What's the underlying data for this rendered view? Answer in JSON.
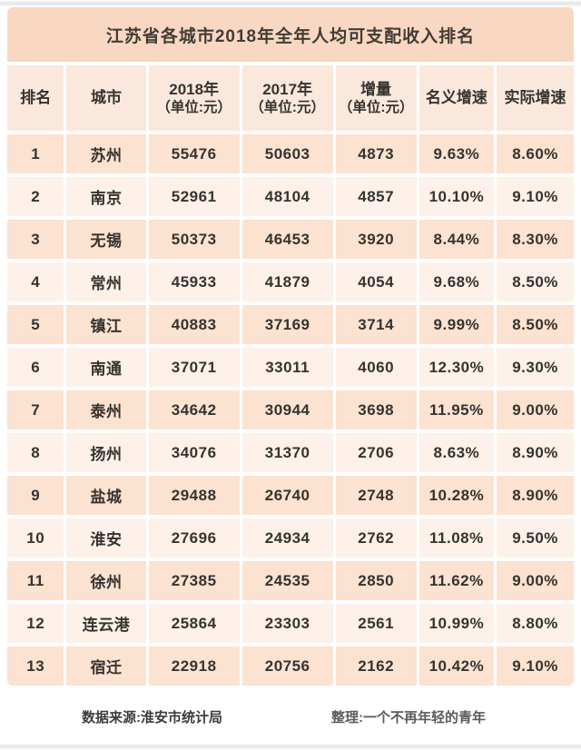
{
  "title": "江苏省各城市2018年全年人均可支配收入排名",
  "table": {
    "headers": [
      {
        "label": "排名"
      },
      {
        "label": "城市"
      },
      {
        "label": "2018年",
        "sub": "（单位:元）"
      },
      {
        "label": "2017年",
        "sub": "（单位:元）"
      },
      {
        "label": "增量",
        "sub": "（单位:元）"
      },
      {
        "label": "名义增速"
      },
      {
        "label": "实际增速"
      }
    ],
    "rows": [
      {
        "cells": [
          "1",
          "苏州",
          "55476",
          "50603",
          "4873",
          "9.63%",
          "8.60%"
        ]
      },
      {
        "cells": [
          "2",
          "南京",
          "52961",
          "48104",
          "4857",
          "10.10%",
          "9.10%"
        ]
      },
      {
        "cells": [
          "3",
          "无锡",
          "50373",
          "46453",
          "3920",
          "8.44%",
          "8.30%"
        ]
      },
      {
        "cells": [
          "4",
          "常州",
          "45933",
          "41879",
          "4054",
          "9.68%",
          "8.50%"
        ]
      },
      {
        "cells": [
          "5",
          "镇江",
          "40883",
          "37169",
          "3714",
          "9.99%",
          "8.50%"
        ]
      },
      {
        "cells": [
          "6",
          "南通",
          "37071",
          "33011",
          "4060",
          "12.30%",
          "9.30%"
        ]
      },
      {
        "cells": [
          "7",
          "泰州",
          "34642",
          "30944",
          "3698",
          "11.95%",
          "9.00%"
        ]
      },
      {
        "cells": [
          "8",
          "扬州",
          "34076",
          "31370",
          "2706",
          "8.63%",
          "8.90%"
        ]
      },
      {
        "cells": [
          "9",
          "盐城",
          "29488",
          "26740",
          "2748",
          "10.28%",
          "8.90%"
        ]
      },
      {
        "cells": [
          "10",
          "淮安",
          "27696",
          "24934",
          "2762",
          "11.08%",
          "9.50%"
        ]
      },
      {
        "cells": [
          "11",
          "徐州",
          "27385",
          "24535",
          "2850",
          "11.62%",
          "9.00%"
        ]
      },
      {
        "cells": [
          "12",
          "连云港",
          "25864",
          "23303",
          "2561",
          "10.99%",
          "8.80%"
        ]
      },
      {
        "cells": [
          "13",
          "宿迁",
          "22918",
          "20756",
          "2162",
          "10.42%",
          "9.10%"
        ]
      }
    ]
  },
  "footer": {
    "left": "数据来源:淮安市统计局",
    "right": "整理:一个不再年轻的青年"
  },
  "colors": {
    "title_bg": "#f8d8c2",
    "header_bg": "#fae8dc",
    "row_odd": "#fbe2d1",
    "row_even": "#fdf1e9",
    "text": "#363330",
    "title_text": "#433b35"
  },
  "chart_data": {
    "type": "table",
    "title": "江苏省各城市2018年全年人均可支配收入排名",
    "columns": [
      "排名",
      "城市",
      "2018年（单位:元）",
      "2017年（单位:元）",
      "增量（单位:元）",
      "名义增速",
      "实际增速"
    ],
    "rows": [
      [
        1,
        "苏州",
        55476,
        50603,
        4873,
        "9.63%",
        "8.60%"
      ],
      [
        2,
        "南京",
        52961,
        48104,
        4857,
        "10.10%",
        "9.10%"
      ],
      [
        3,
        "无锡",
        50373,
        46453,
        3920,
        "8.44%",
        "8.30%"
      ],
      [
        4,
        "常州",
        45933,
        41879,
        4054,
        "9.68%",
        "8.50%"
      ],
      [
        5,
        "镇江",
        40883,
        37169,
        3714,
        "9.99%",
        "8.50%"
      ],
      [
        6,
        "南通",
        37071,
        33011,
        4060,
        "12.30%",
        "9.30%"
      ],
      [
        7,
        "泰州",
        34642,
        30944,
        3698,
        "11.95%",
        "9.00%"
      ],
      [
        8,
        "扬州",
        34076,
        31370,
        2706,
        "8.63%",
        "8.90%"
      ],
      [
        9,
        "盐城",
        29488,
        26740,
        2748,
        "10.28%",
        "8.90%"
      ],
      [
        10,
        "淮安",
        27696,
        24934,
        2762,
        "11.08%",
        "9.50%"
      ],
      [
        11,
        "徐州",
        27385,
        24535,
        2850,
        "11.62%",
        "9.00%"
      ],
      [
        12,
        "连云港",
        25864,
        23303,
        2561,
        "10.99%",
        "8.80%"
      ],
      [
        13,
        "宿迁",
        22918,
        20756,
        2162,
        "10.42%",
        "9.10%"
      ]
    ],
    "source": "数据来源:淮安市统计局",
    "credit": "整理:一个不再年轻的青年"
  }
}
